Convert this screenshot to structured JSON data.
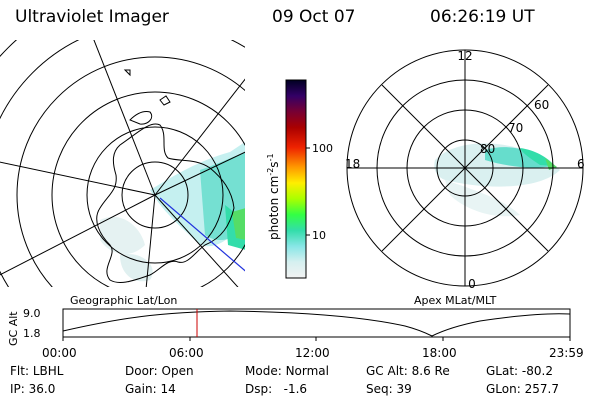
{
  "header": {
    "instrument": "Ultraviolet Imager",
    "date": "09 Oct 07",
    "time": "06:26:19 UT"
  },
  "left_panel": {
    "label": "Geographic Lat/Lon"
  },
  "right_panel": {
    "label": "Apex MLat/MLT",
    "mlt_labels": {
      "top": "12",
      "bottom": "0",
      "left": "18",
      "right": "6"
    },
    "lat_labels": [
      "60",
      "70",
      "80"
    ]
  },
  "colorbar": {
    "unit_label": "photon cm",
    "unit_sup1": "-2",
    "unit_mid": "s",
    "unit_sup2": "-1",
    "ticks": [
      "100",
      "10"
    ],
    "colors": [
      "#000033",
      "#330066",
      "#660033",
      "#990000",
      "#cc0000",
      "#ee3300",
      "#ff8800",
      "#ffcc00",
      "#ddff00",
      "#99ff00",
      "#33ff66",
      "#33ddaa",
      "#66ddcc",
      "#aaeeee",
      "#ddf3f3",
      "#f2f2f2"
    ]
  },
  "altitude_plot": {
    "ylabel": "GC Alt",
    "yticks": [
      "9.0",
      "1.8"
    ],
    "xticks": [
      "00:00",
      "06:00",
      "12:00",
      "18:00",
      "23:59"
    ],
    "current_time_marker": "06:26"
  },
  "info": {
    "filter_label": "Flt:",
    "filter_value": "LBHL",
    "ip_label": "IP:",
    "ip_value": "36.0",
    "door_label": "Door:",
    "door_value": "Open",
    "gain_label": "Gain:",
    "gain_value": "14",
    "mode_label": "Mode:",
    "mode_value": "Normal",
    "dsp_label": "Dsp:",
    "dsp_value": "-1.6",
    "gcalt_label": "GC Alt:",
    "gcalt_value": "8.6 Re",
    "seq_label": "Seq:",
    "seq_value": "39",
    "glat_label": "GLat:",
    "glat_value": "-80.2",
    "glon_label": "GLon:",
    "glon_value": "257.7"
  }
}
